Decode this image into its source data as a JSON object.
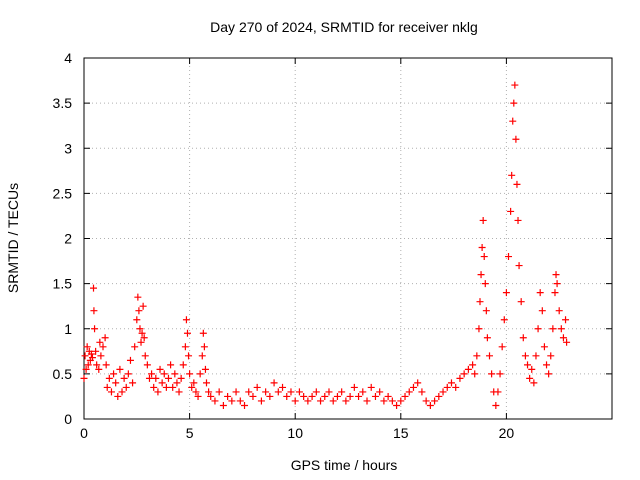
{
  "chart_data": {
    "type": "scatter",
    "title": "Day 270 of 2024, SRMTID for receiver nklg",
    "xlabel": "GPS time / hours",
    "ylabel": "SRMTID / TECUs",
    "xlim": [
      0,
      25
    ],
    "ylim": [
      0,
      4
    ],
    "x_ticks": [
      0,
      5,
      10,
      15,
      20
    ],
    "x_tick_labels": [
      "0",
      "5",
      "10",
      "15",
      "20"
    ],
    "y_ticks": [
      0,
      0.5,
      1,
      1.5,
      2,
      2.5,
      3,
      3.5,
      4
    ],
    "y_tick_labels": [
      "0",
      "0.5",
      "1",
      "1.5",
      "2",
      "2.5",
      "3",
      "3.5",
      "4"
    ],
    "grid": true,
    "marker": "+",
    "marker_color": "#ff0000",
    "series": [
      {
        "name": "SRMTID",
        "color": "#ff0000",
        "points": [
          [
            0.0,
            0.45
          ],
          [
            0.05,
            0.7
          ],
          [
            0.1,
            0.55
          ],
          [
            0.15,
            0.8
          ],
          [
            0.2,
            0.6
          ],
          [
            0.25,
            0.75
          ],
          [
            0.3,
            0.65
          ],
          [
            0.35,
            0.72
          ],
          [
            0.4,
            0.68
          ],
          [
            0.45,
            1.45
          ],
          [
            0.47,
            1.2
          ],
          [
            0.5,
            1.0
          ],
          [
            0.55,
            0.75
          ],
          [
            0.6,
            0.6
          ],
          [
            0.7,
            0.55
          ],
          [
            0.75,
            0.85
          ],
          [
            0.8,
            0.7
          ],
          [
            0.9,
            0.8
          ],
          [
            1.0,
            0.9
          ],
          [
            1.05,
            0.6
          ],
          [
            1.1,
            0.35
          ],
          [
            1.2,
            0.45
          ],
          [
            1.3,
            0.3
          ],
          [
            1.4,
            0.5
          ],
          [
            1.5,
            0.4
          ],
          [
            1.6,
            0.25
          ],
          [
            1.7,
            0.55
          ],
          [
            1.8,
            0.3
          ],
          [
            1.9,
            0.45
          ],
          [
            2.0,
            0.35
          ],
          [
            2.1,
            0.5
          ],
          [
            2.2,
            0.65
          ],
          [
            2.3,
            0.4
          ],
          [
            2.4,
            0.8
          ],
          [
            2.5,
            1.1
          ],
          [
            2.55,
            1.35
          ],
          [
            2.6,
            1.2
          ],
          [
            2.65,
            1.0
          ],
          [
            2.7,
            0.85
          ],
          [
            2.75,
            0.95
          ],
          [
            2.8,
            1.25
          ],
          [
            2.85,
            0.9
          ],
          [
            2.9,
            0.7
          ],
          [
            3.0,
            0.6
          ],
          [
            3.1,
            0.45
          ],
          [
            3.2,
            0.5
          ],
          [
            3.3,
            0.35
          ],
          [
            3.4,
            0.45
          ],
          [
            3.5,
            0.3
          ],
          [
            3.6,
            0.55
          ],
          [
            3.7,
            0.4
          ],
          [
            3.8,
            0.5
          ],
          [
            3.9,
            0.35
          ],
          [
            4.0,
            0.45
          ],
          [
            4.1,
            0.6
          ],
          [
            4.2,
            0.35
          ],
          [
            4.3,
            0.5
          ],
          [
            4.4,
            0.4
          ],
          [
            4.5,
            0.3
          ],
          [
            4.6,
            0.45
          ],
          [
            4.7,
            0.6
          ],
          [
            4.8,
            0.8
          ],
          [
            4.85,
            1.1
          ],
          [
            4.9,
            0.95
          ],
          [
            4.95,
            0.7
          ],
          [
            5.0,
            0.5
          ],
          [
            5.1,
            0.35
          ],
          [
            5.2,
            0.4
          ],
          [
            5.3,
            0.3
          ],
          [
            5.4,
            0.25
          ],
          [
            5.5,
            0.5
          ],
          [
            5.6,
            0.7
          ],
          [
            5.65,
            0.95
          ],
          [
            5.7,
            0.8
          ],
          [
            5.75,
            0.55
          ],
          [
            5.8,
            0.4
          ],
          [
            5.9,
            0.3
          ],
          [
            6.0,
            0.25
          ],
          [
            6.2,
            0.2
          ],
          [
            6.4,
            0.3
          ],
          [
            6.6,
            0.15
          ],
          [
            6.8,
            0.25
          ],
          [
            7.0,
            0.2
          ],
          [
            7.2,
            0.3
          ],
          [
            7.4,
            0.2
          ],
          [
            7.6,
            0.15
          ],
          [
            7.8,
            0.3
          ],
          [
            8.0,
            0.25
          ],
          [
            8.2,
            0.35
          ],
          [
            8.4,
            0.2
          ],
          [
            8.6,
            0.3
          ],
          [
            8.8,
            0.25
          ],
          [
            9.0,
            0.4
          ],
          [
            9.2,
            0.3
          ],
          [
            9.4,
            0.35
          ],
          [
            9.6,
            0.25
          ],
          [
            9.8,
            0.3
          ],
          [
            10.0,
            0.2
          ],
          [
            10.2,
            0.3
          ],
          [
            10.4,
            0.25
          ],
          [
            10.6,
            0.2
          ],
          [
            10.8,
            0.25
          ],
          [
            11.0,
            0.3
          ],
          [
            11.2,
            0.2
          ],
          [
            11.4,
            0.25
          ],
          [
            11.6,
            0.3
          ],
          [
            11.8,
            0.2
          ],
          [
            12.0,
            0.25
          ],
          [
            12.2,
            0.3
          ],
          [
            12.4,
            0.2
          ],
          [
            12.6,
            0.25
          ],
          [
            12.8,
            0.35
          ],
          [
            13.0,
            0.25
          ],
          [
            13.2,
            0.3
          ],
          [
            13.4,
            0.2
          ],
          [
            13.6,
            0.35
          ],
          [
            13.8,
            0.25
          ],
          [
            14.0,
            0.3
          ],
          [
            14.2,
            0.2
          ],
          [
            14.4,
            0.25
          ],
          [
            14.6,
            0.2
          ],
          [
            14.8,
            0.15
          ],
          [
            15.0,
            0.2
          ],
          [
            15.2,
            0.25
          ],
          [
            15.4,
            0.3
          ],
          [
            15.6,
            0.35
          ],
          [
            15.8,
            0.4
          ],
          [
            16.0,
            0.3
          ],
          [
            16.2,
            0.2
          ],
          [
            16.4,
            0.15
          ],
          [
            16.6,
            0.2
          ],
          [
            16.8,
            0.25
          ],
          [
            17.0,
            0.3
          ],
          [
            17.2,
            0.35
          ],
          [
            17.4,
            0.4
          ],
          [
            17.6,
            0.35
          ],
          [
            17.8,
            0.45
          ],
          [
            18.0,
            0.5
          ],
          [
            18.2,
            0.55
          ],
          [
            18.4,
            0.6
          ],
          [
            18.5,
            0.5
          ],
          [
            18.6,
            0.7
          ],
          [
            18.7,
            1.0
          ],
          [
            18.75,
            1.3
          ],
          [
            18.8,
            1.6
          ],
          [
            18.85,
            1.9
          ],
          [
            18.9,
            2.2
          ],
          [
            18.95,
            1.8
          ],
          [
            19.0,
            1.5
          ],
          [
            19.05,
            1.2
          ],
          [
            19.1,
            0.9
          ],
          [
            19.2,
            0.7
          ],
          [
            19.3,
            0.5
          ],
          [
            19.4,
            0.3
          ],
          [
            19.5,
            0.15
          ],
          [
            19.6,
            0.3
          ],
          [
            19.7,
            0.5
          ],
          [
            19.8,
            0.8
          ],
          [
            19.9,
            1.1
          ],
          [
            20.0,
            1.4
          ],
          [
            20.1,
            1.8
          ],
          [
            20.2,
            2.3
          ],
          [
            20.25,
            2.7
          ],
          [
            20.3,
            3.3
          ],
          [
            20.35,
            3.5
          ],
          [
            20.4,
            3.7
          ],
          [
            20.45,
            3.1
          ],
          [
            20.5,
            2.6
          ],
          [
            20.55,
            2.2
          ],
          [
            20.6,
            1.7
          ],
          [
            20.7,
            1.3
          ],
          [
            20.8,
            0.9
          ],
          [
            20.9,
            0.7
          ],
          [
            21.0,
            0.6
          ],
          [
            21.1,
            0.45
          ],
          [
            21.2,
            0.55
          ],
          [
            21.3,
            0.4
          ],
          [
            21.4,
            0.7
          ],
          [
            21.5,
            1.0
          ],
          [
            21.6,
            1.4
          ],
          [
            21.7,
            1.2
          ],
          [
            21.8,
            0.8
          ],
          [
            21.9,
            0.6
          ],
          [
            22.0,
            0.5
          ],
          [
            22.1,
            0.7
          ],
          [
            22.2,
            1.0
          ],
          [
            22.3,
            1.4
          ],
          [
            22.35,
            1.6
          ],
          [
            22.4,
            1.5
          ],
          [
            22.5,
            1.2
          ],
          [
            22.6,
            1.0
          ],
          [
            22.7,
            0.9
          ],
          [
            22.8,
            1.1
          ],
          [
            22.85,
            0.85
          ]
        ]
      }
    ]
  }
}
